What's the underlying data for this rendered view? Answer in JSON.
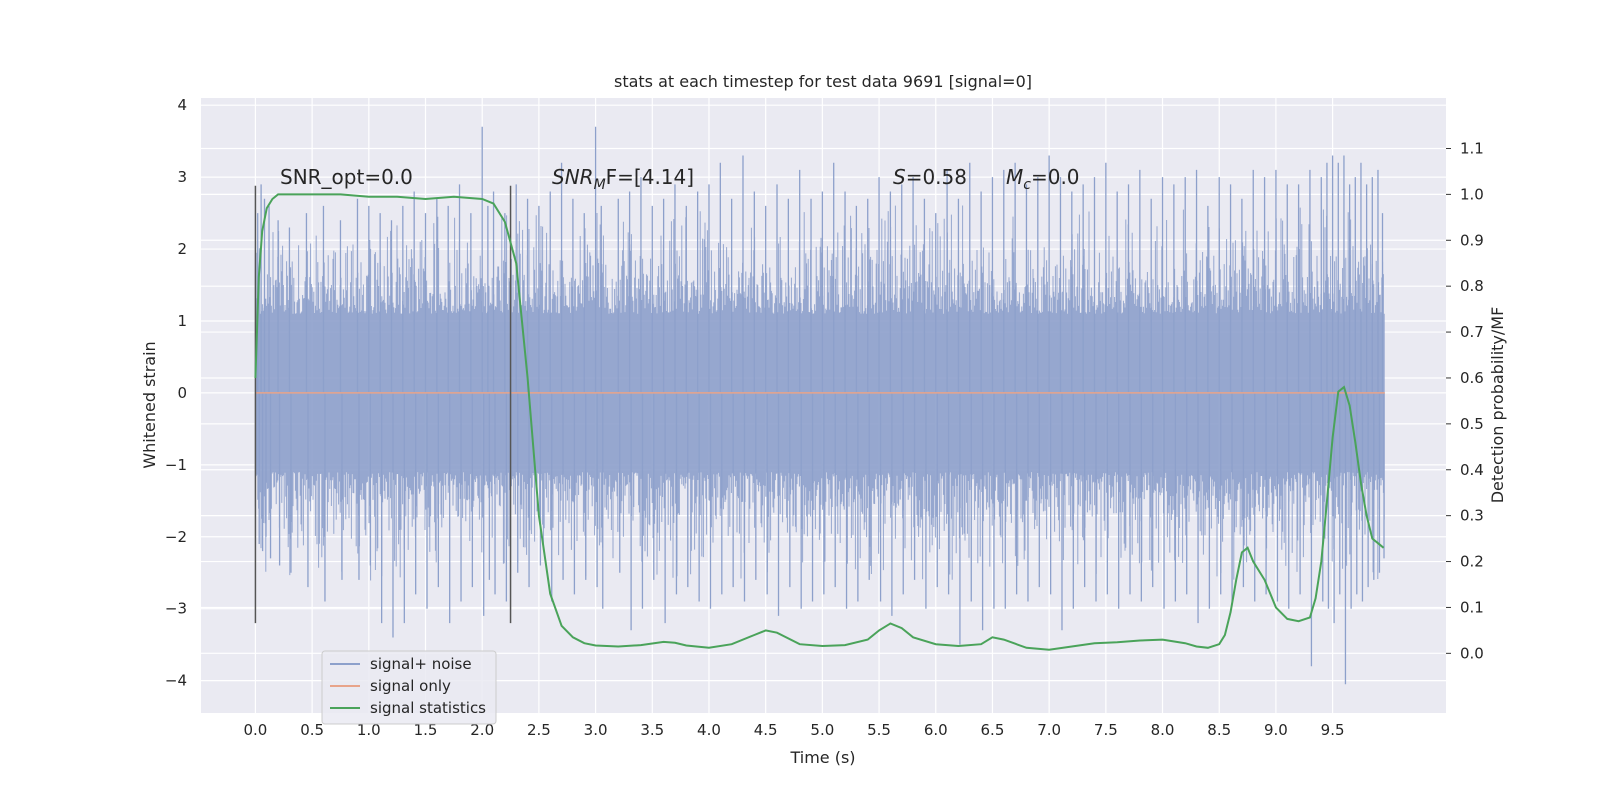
{
  "chart_data": {
    "type": "line",
    "title": "stats at each timestep for test data 9691 [signal=0]",
    "xlabel": "Time (s)",
    "ylabel": "Whitened strain",
    "y2label": "Detection probability/MF",
    "xlim": [
      -0.48,
      10.5
    ],
    "ylim": [
      -4.45,
      4.1
    ],
    "y2lim": [
      -0.13,
      1.21
    ],
    "xticks": [
      "0.0",
      "0.5",
      "1.0",
      "1.5",
      "2.0",
      "2.5",
      "3.0",
      "3.5",
      "4.0",
      "4.5",
      "5.0",
      "5.5",
      "6.0",
      "6.5",
      "7.0",
      "7.5",
      "8.0",
      "8.5",
      "9.0",
      "9.5"
    ],
    "yticks": [
      "4",
      "3",
      "2",
      "1",
      "0",
      "−1",
      "−2",
      "−3",
      "−4"
    ],
    "y2ticks": [
      "1.1",
      "1.0",
      "0.9",
      "0.8",
      "0.7",
      "0.6",
      "0.5",
      "0.4",
      "0.3",
      "0.2",
      "0.1",
      "0.0"
    ],
    "grid": true,
    "legend_position": "lower-left",
    "colors": {
      "plot_bg": "#eaeaf2",
      "grid": "#ffffff",
      "noise": "#8da0cb",
      "signal": "#e8a48a",
      "stats": "#4aa35a",
      "vline": "#555555"
    },
    "annotations": {
      "snr_opt": "SNR_opt=0.0",
      "snr_mf": "SNR",
      "snr_mf_sub": "M",
      "snr_mf_tail": "F=[4.14]",
      "s_stat": "S",
      "s_value": "=0.58",
      "mc": "M",
      "mc_sub": "c",
      "mc_value": "=0.0"
    },
    "vertical_lines_x": [
      0.0,
      2.25
    ],
    "series": [
      {
        "name": "signal+ noise",
        "axis": "left",
        "band": {
          "x_start": 0.0,
          "x_end": 9.96,
          "typical_upper": 1.7,
          "typical_lower": -1.7
        },
        "x": [
          0.02,
          0.05,
          0.08,
          0.12,
          0.2,
          0.3,
          0.45,
          0.6,
          0.75,
          0.9,
          1.0,
          1.1,
          1.2,
          1.3,
          1.4,
          1.5,
          1.6,
          1.7,
          1.8,
          1.9,
          2.0,
          2.05,
          2.1,
          2.2,
          2.3,
          2.4,
          2.5,
          2.6,
          2.7,
          2.8,
          2.9,
          3.0,
          3.05,
          3.2,
          3.3,
          3.4,
          3.5,
          3.6,
          3.7,
          3.8,
          3.9,
          4.0,
          4.1,
          4.2,
          4.3,
          4.4,
          4.5,
          4.6,
          4.7,
          4.8,
          4.9,
          5.0,
          5.1,
          5.2,
          5.3,
          5.4,
          5.5,
          5.6,
          5.7,
          5.8,
          5.9,
          6.0,
          6.1,
          6.2,
          6.3,
          6.4,
          6.5,
          6.6,
          6.7,
          6.8,
          6.9,
          7.0,
          7.1,
          7.2,
          7.3,
          7.4,
          7.5,
          7.6,
          7.7,
          7.8,
          7.9,
          8.0,
          8.1,
          8.2,
          8.3,
          8.4,
          8.5,
          8.6,
          8.7,
          8.8,
          8.9,
          9.0,
          9.1,
          9.2,
          9.3,
          9.4,
          9.45,
          9.5,
          9.55,
          9.6,
          9.65,
          9.7,
          9.75,
          9.8,
          9.85,
          9.9,
          9.94
        ],
        "peak_high": [
          2.5,
          2.9,
          2.7,
          2.6,
          2.4,
          2.3,
          2.5,
          2.6,
          2.4,
          2.7,
          2.6,
          2.5,
          2.4,
          2.6,
          2.8,
          2.5,
          2.7,
          2.6,
          2.9,
          2.5,
          3.7,
          2.6,
          2.8,
          2.5,
          2.9,
          2.7,
          2.6,
          2.8,
          3.2,
          2.7,
          2.5,
          3.7,
          2.6,
          2.7,
          2.8,
          3.0,
          2.6,
          2.7,
          2.9,
          2.6,
          2.8,
          2.9,
          3.2,
          2.7,
          3.3,
          2.8,
          2.6,
          2.9,
          2.7,
          3.1,
          2.7,
          2.8,
          3.2,
          2.8,
          2.6,
          2.7,
          3.0,
          2.8,
          2.9,
          3.0,
          2.7,
          2.5,
          3.1,
          2.7,
          3.2,
          2.8,
          3.0,
          3.1,
          3.2,
          2.9,
          3.0,
          3.3,
          3.0,
          2.8,
          2.9,
          3.0,
          3.2,
          2.8,
          2.9,
          3.1,
          2.7,
          3.0,
          2.9,
          3.0,
          3.1,
          2.6,
          3.0,
          2.9,
          2.7,
          3.1,
          3.0,
          3.1,
          2.9,
          2.9,
          3.1,
          3.0,
          3.2,
          3.3,
          3.2,
          3.3,
          2.9,
          3.0,
          3.2,
          2.9,
          3.0,
          3.1,
          2.5
        ],
        "peak_low": [
          -2.1,
          -2.2,
          -2.0,
          -2.3,
          -2.4,
          -2.5,
          -2.7,
          -2.9,
          -2.6,
          -2.6,
          -2.4,
          -3.2,
          -3.4,
          -3.2,
          -2.8,
          -3.0,
          -2.7,
          -3.2,
          -2.9,
          -2.7,
          -3.1,
          -2.6,
          -2.8,
          -2.9,
          -2.5,
          -2.7,
          -2.4,
          -2.9,
          -2.6,
          -2.8,
          -2.6,
          -2.7,
          -3.0,
          -2.5,
          -3.3,
          -3.0,
          -2.6,
          -3.2,
          -2.8,
          -2.7,
          -2.9,
          -3.0,
          -2.8,
          -2.7,
          -2.9,
          -2.6,
          -2.8,
          -3.1,
          -2.7,
          -3.0,
          -2.9,
          -2.8,
          -2.7,
          -3.0,
          -2.9,
          -2.6,
          -2.9,
          -3.1,
          -2.8,
          -2.6,
          -3.0,
          -2.7,
          -2.8,
          -3.5,
          -2.9,
          -3.3,
          -3.0,
          -3.0,
          -2.8,
          -2.9,
          -2.7,
          -2.8,
          -3.3,
          -3.0,
          -2.7,
          -2.9,
          -2.8,
          -3.0,
          -2.8,
          -2.9,
          -2.7,
          -3.0,
          -2.9,
          -2.8,
          -3.2,
          -3.0,
          -2.8,
          -2.9,
          -2.7,
          -2.9,
          -2.8,
          -2.9,
          -3.0,
          -2.8,
          -3.8,
          -2.9,
          -3.0,
          -3.2,
          -2.8,
          -4.05,
          -3.0,
          -2.8,
          -2.9,
          -2.7,
          -2.6,
          -2.5,
          -2.3
        ]
      },
      {
        "name": "signal only",
        "axis": "left",
        "x": [
          0.0,
          9.96
        ],
        "y": [
          0.0,
          0.0
        ]
      },
      {
        "name": "signal statistics",
        "axis": "right",
        "x": [
          0.0,
          0.03,
          0.06,
          0.1,
          0.15,
          0.2,
          0.3,
          0.5,
          0.75,
          1.0,
          1.25,
          1.5,
          1.75,
          2.0,
          2.1,
          2.2,
          2.3,
          2.4,
          2.5,
          2.6,
          2.7,
          2.8,
          2.9,
          3.0,
          3.2,
          3.4,
          3.6,
          3.7,
          3.8,
          4.0,
          4.2,
          4.4,
          4.5,
          4.6,
          4.8,
          5.0,
          5.2,
          5.4,
          5.5,
          5.6,
          5.7,
          5.8,
          6.0,
          6.2,
          6.4,
          6.5,
          6.6,
          6.8,
          7.0,
          7.2,
          7.4,
          7.6,
          7.8,
          8.0,
          8.2,
          8.3,
          8.4,
          8.5,
          8.55,
          8.6,
          8.65,
          8.7,
          8.75,
          8.8,
          8.9,
          9.0,
          9.1,
          9.2,
          9.3,
          9.35,
          9.4,
          9.45,
          9.5,
          9.55,
          9.6,
          9.65,
          9.7,
          9.75,
          9.8,
          9.85,
          9.9,
          9.95
        ],
        "y": [
          0.6,
          0.82,
          0.92,
          0.97,
          0.99,
          1.0,
          1.0,
          1.0,
          1.0,
          0.995,
          0.995,
          0.99,
          0.995,
          0.99,
          0.98,
          0.94,
          0.85,
          0.6,
          0.3,
          0.13,
          0.06,
          0.035,
          0.022,
          0.017,
          0.015,
          0.018,
          0.025,
          0.023,
          0.017,
          0.012,
          0.02,
          0.04,
          0.05,
          0.045,
          0.02,
          0.016,
          0.018,
          0.03,
          0.05,
          0.065,
          0.055,
          0.035,
          0.02,
          0.016,
          0.02,
          0.035,
          0.03,
          0.012,
          0.008,
          0.015,
          0.022,
          0.024,
          0.028,
          0.03,
          0.022,
          0.015,
          0.012,
          0.02,
          0.04,
          0.09,
          0.16,
          0.22,
          0.23,
          0.2,
          0.16,
          0.1,
          0.075,
          0.07,
          0.078,
          0.12,
          0.2,
          0.33,
          0.47,
          0.57,
          0.58,
          0.54,
          0.46,
          0.37,
          0.3,
          0.25,
          0.24,
          0.23
        ]
      }
    ]
  },
  "legend": {
    "noise_label": "signal+ noise",
    "signal_label": "signal only",
    "stats_label": "signal statistics"
  }
}
